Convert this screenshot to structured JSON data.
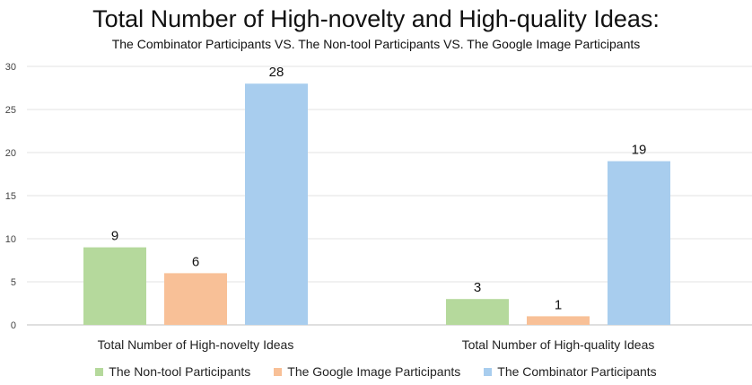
{
  "chart_data": {
    "type": "bar",
    "title": "Total Number of High-novelty and High-quality Ideas:",
    "subtitle": "The Combinator Participants VS. The Non-tool Participants VS. The Google Image Participants",
    "categories": [
      "Total Number of High-novelty Ideas",
      "Total Number of High-quality Ideas"
    ],
    "series": [
      {
        "name": "The Non-tool Participants",
        "values": [
          9,
          3
        ],
        "color": "#b5d99c"
      },
      {
        "name": "The Google Image Participants",
        "values": [
          6,
          1
        ],
        "color": "#f8c097"
      },
      {
        "name": "The Combinator Participants",
        "values": [
          28,
          19
        ],
        "color": "#a8cdee"
      }
    ],
    "ylim": [
      0,
      30
    ],
    "yticks": [
      0,
      5,
      10,
      15,
      20,
      25,
      30
    ],
    "xlabel": "",
    "ylabel": "",
    "grid": true,
    "legend_position": "bottom",
    "data_labels": true
  }
}
